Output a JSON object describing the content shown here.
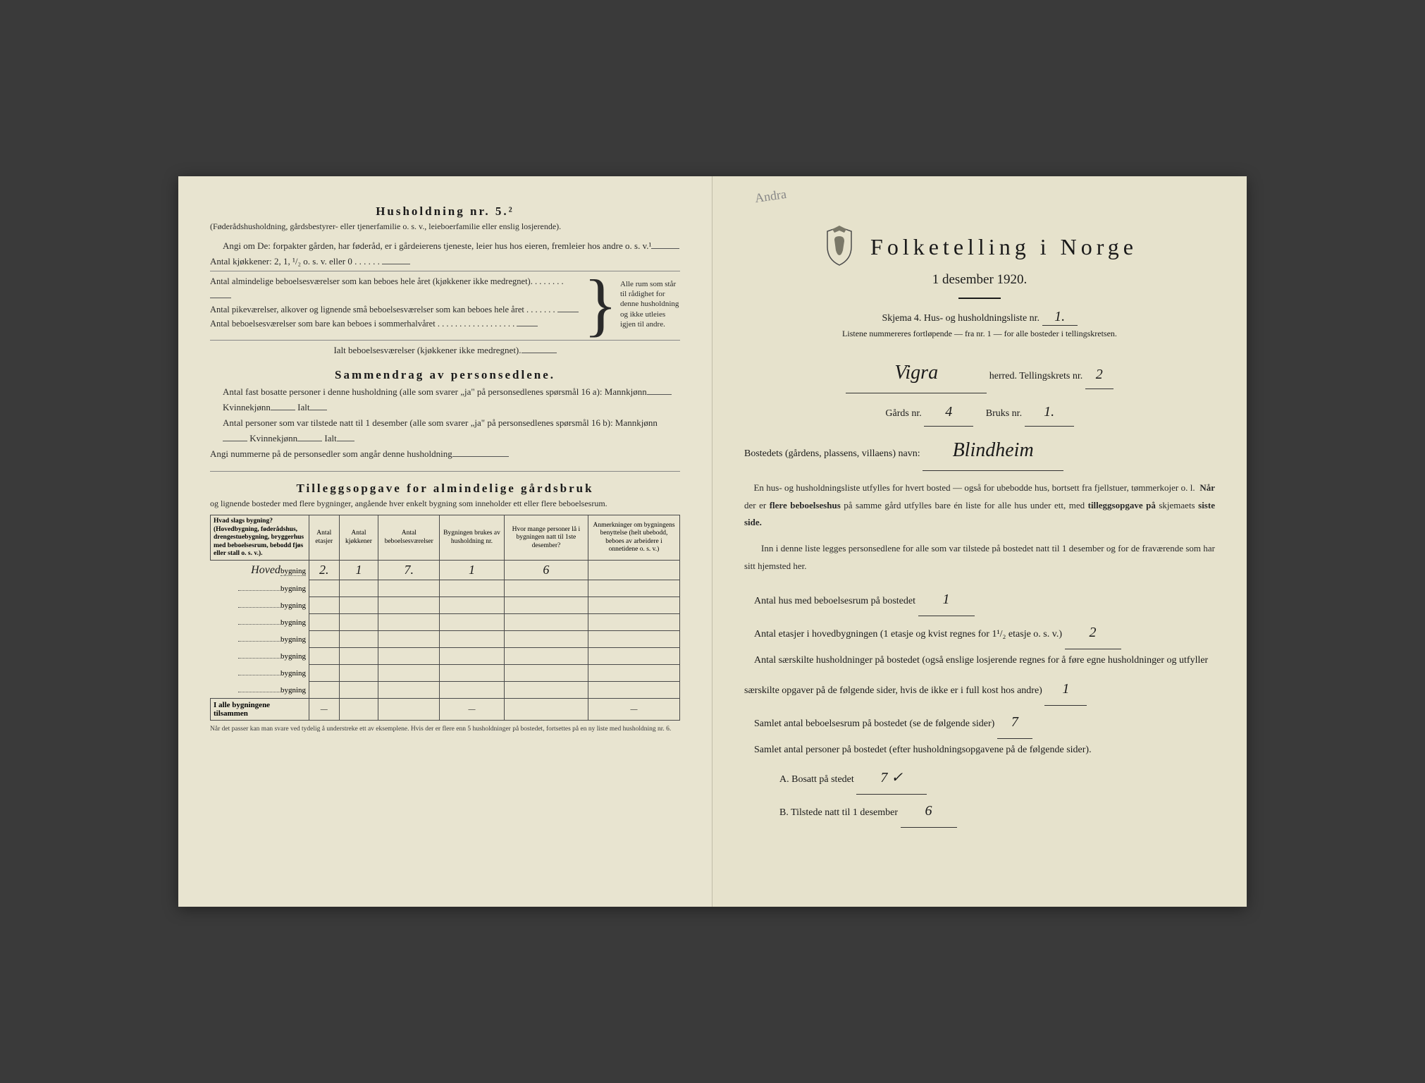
{
  "left": {
    "householdTitle": "Husholdning nr. 5.²",
    "householdSub": "(Føderådshusholdning, gårdsbestyrer- eller tjenerfamilie o. s. v., leieboerfamilie eller enslig losjerende).",
    "angiOm": "Angi om De: forpakter gården, har føderåd, er i gårdeierens tjeneste, leier hus hos eieren, fremleier hos andre o. s. v.¹",
    "kitchens": "Antal kjøkkener: 2, 1, ¹/₂ o. s. v. eller 0",
    "bracketLines": [
      "Antal almindelige beboelsesværelser som kan beboes hele året (kjøkkener ikke medregnet).",
      "Antal pikeværelser, alkover og lignende små beboelsesværelser som kan beboes hele året",
      "Antal beboelsesværelser som bare kan beboes i sommerhalvåret"
    ],
    "bracketRight": "Alle rum som står til rådighet for denne husholdning og ikke utleies igjen til andre.",
    "ialt": "Ialt beboelsesværelser (kjøkkener ikke medregnet).",
    "sammendragTitle": "Sammendrag av personsedlene.",
    "samLine1": "Antal fast bosatte personer i denne husholdning (alle som svarer „ja\" på personsedlenes spørsmål 16 a): Mannkjønn",
    "kvinne": "Kvinnekjønn",
    "ialtLabel": "Ialt",
    "samLine2": "Antal personer som var tilstede natt til 1 desember (alle som svarer „ja\" på personsedlenes spørsmål 16 b): Mannkjønn",
    "angiNum": "Angi nummerne på de personsedler som angår denne husholdning",
    "tilleggTitle": "Tilleggsopgave for almindelige gårdsbruk",
    "tilleggSub": "og lignende bosteder med flere bygninger, angående hver enkelt bygning som inneholder ett eller flere beboelsesrum.",
    "tableHeaders": [
      "Hvad slags bygning?\n(Hovedbygning, føderådshus, drengestuebygning, bryggerhus med beboelsesrum, bebodd fjøs eller stall o. s. v.).",
      "Antal etasjer",
      "Antal kjøkkener",
      "Antal beboelsesværelser",
      "Bygningen brukes av husholdning nr.",
      "Hvor mange personer lå i bygningen natt til 1ste desember?",
      "Anmerkninger om bygningens benyttelse (helt ubebodd, beboes av arbeidere i onnetidene o. s. v.)"
    ],
    "tableRows": [
      {
        "label": "Hovedbygning",
        "labelPrefix": "Hoved",
        "values": [
          "2.",
          "1",
          "7.",
          "1",
          "6",
          ""
        ]
      },
      {
        "label": "bygning",
        "values": [
          "",
          "",
          "",
          "",
          "",
          ""
        ]
      },
      {
        "label": "bygning",
        "values": [
          "",
          "",
          "",
          "",
          "",
          ""
        ]
      },
      {
        "label": "bygning",
        "values": [
          "",
          "",
          "",
          "",
          "",
          ""
        ]
      },
      {
        "label": "bygning",
        "values": [
          "",
          "",
          "",
          "",
          "",
          ""
        ]
      },
      {
        "label": "bygning",
        "values": [
          "",
          "",
          "",
          "",
          "",
          ""
        ]
      },
      {
        "label": "bygning",
        "values": [
          "",
          "",
          "",
          "",
          "",
          ""
        ]
      },
      {
        "label": "bygning",
        "values": [
          "",
          "",
          "",
          "",
          "",
          ""
        ]
      }
    ],
    "summaryRowLabel": "I alle bygningene tilsammen",
    "footnote": "Når det passer kan man svare ved tydelig å understreke ett av eksemplene.\nHvis der er flere enn 5 husholdninger på bostedet, fortsettes på en ny liste med husholdning nr. 6."
  },
  "right": {
    "pencilNote": "Andra",
    "mainTitle": "Folketelling i Norge",
    "date": "1 desember 1920.",
    "schema": "Skjema 4.  Hus- og husholdningsliste nr.",
    "schemaNr": "1.",
    "listene": "Listene nummereres fortløpende — fra nr. 1 — for alle bosteder i tellingskretsen.",
    "herred": "Vigra",
    "herredLabel": "herred.   Tellingskrets nr.",
    "tellingskrets": "2",
    "gardsLabel": "Gårds nr.",
    "gardsNr": "4",
    "bruksLabel": "Bruks nr.",
    "bruksNr": "1.",
    "bostedLabel": "Bostedets (gårdens, plassens, villaens) navn:",
    "bostedName": "Blindheim",
    "para1": "En hus- og husholdningsliste utfylles for hvert bosted — også for ubebodde hus, bortsett fra fjellstuer, tømmerkojer o. l.  Når der er flere beboelseshus på samme gård utfylles bare én liste for alle hus under ett, med tilleggsopgave på skjemaets siste side.",
    "para2": "Inn i denne liste legges personsedlene for alle som var tilstede på bostedet natt til 1 desember og for de fraværende som har sitt hjemsted her.",
    "q1": "Antal hus med beboelsesrum på bostedet",
    "a1": "1",
    "q2": "Antal etasjer i hovedbygningen (1 etasje og kvist regnes for 1¹/₂ etasje o. s. v.)",
    "a2": "2",
    "q3": "Antal særskilte husholdninger på bostedet (også enslige losjerende regnes for å føre egne husholdninger og utfyller særskilte opgaver på de følgende sider, hvis de ikke er i full kost hos andre)",
    "a3": "1",
    "q4": "Samlet antal beboelsesrum på bostedet (se de følgende sider)",
    "a4": "7",
    "q5": "Samlet antal personer på bostedet (efter husholdningsopgavene på de følgende sider).",
    "qA": "A.  Bosatt på stedet",
    "aA": "7 ✓",
    "qB": "B.  Tilstede natt til 1 desember",
    "aB": "6"
  },
  "colors": {
    "paper": "#e8e4d0",
    "paperRight": "#e6e2cc",
    "text": "#1a1a1a",
    "textLight": "#2a2a2a",
    "border": "#4a4a4a",
    "background": "#3a3a3a"
  }
}
